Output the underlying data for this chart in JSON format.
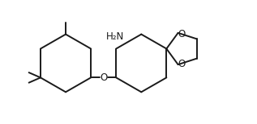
{
  "background": "#ffffff",
  "line_color": "#1a1a1a",
  "line_width": 1.4,
  "text_color": "#1a1a1a",
  "nh2_label": "H₂N",
  "o_label": "O",
  "figsize": [
    3.17,
    1.54
  ],
  "dpi": 100,
  "xlim": [
    -0.5,
    10.5
  ],
  "ylim": [
    0.2,
    5.2
  ]
}
